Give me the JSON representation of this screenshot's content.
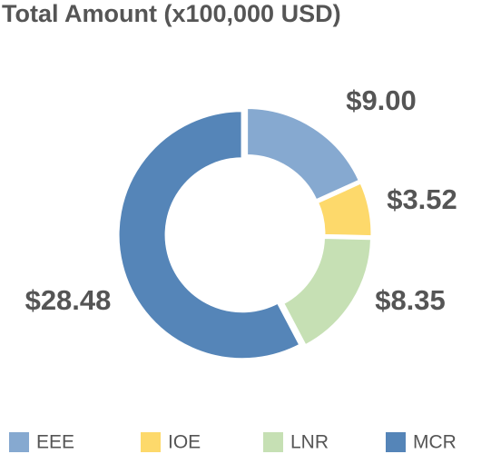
{
  "chart_data": {
    "type": "donut",
    "title": "Total Amount (x100,000 USD)",
    "categories": [
      "EEE",
      "IOE",
      "LNR",
      "MCR"
    ],
    "values": [
      9.0,
      3.52,
      8.35,
      28.48
    ],
    "value_labels": [
      "$9.00",
      "$3.52",
      "$8.35",
      "$28.48"
    ],
    "colors": [
      "#86a9d0",
      "#fdd96b",
      "#c6e0b4",
      "#5585b8"
    ],
    "legend": "bottom"
  }
}
